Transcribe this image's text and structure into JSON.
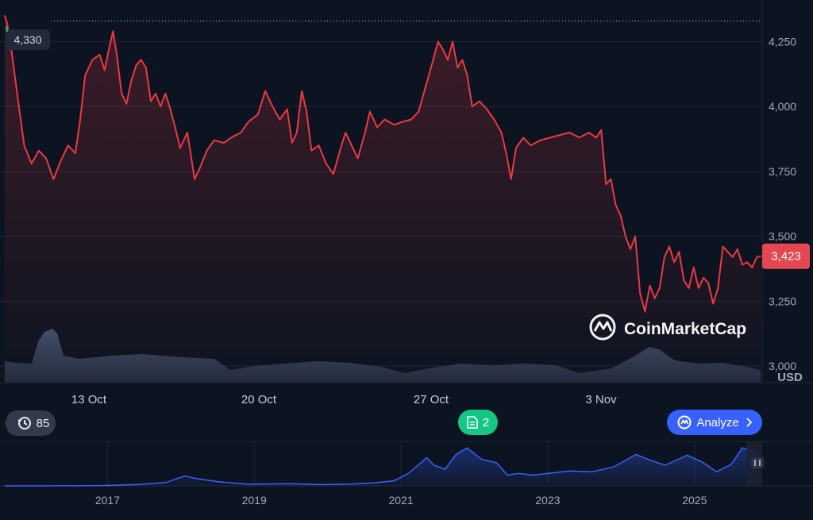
{
  "chart_data": [
    {
      "type": "line",
      "title": "",
      "ylabel": "USD",
      "xlabel": "",
      "ylim": [
        2850,
        4380
      ],
      "yticks": [
        "4,250",
        "4,000",
        "3,750",
        "3,500",
        "3,250",
        "3,000"
      ],
      "ytick_values": [
        4250,
        4000,
        3750,
        3500,
        3250,
        3000
      ],
      "xticks": [
        "13 Oct",
        "20 Oct",
        "27 Oct",
        "3 Nov"
      ],
      "high_label": "4,330",
      "high_value": 4330,
      "current_label": "3,423",
      "current_value": 3423,
      "watermark": "CoinMarketCap",
      "grid": true,
      "series": [
        {
          "color": "#ea3943",
          "points": [
            [
              0,
              4350
            ],
            [
              0.1,
              4320
            ],
            [
              0.3,
              4200
            ],
            [
              0.55,
              4020
            ],
            [
              0.8,
              3850
            ],
            [
              1.1,
              3780
            ],
            [
              1.4,
              3830
            ],
            [
              1.7,
              3800
            ],
            [
              2.0,
              3720
            ],
            [
              2.3,
              3790
            ],
            [
              2.6,
              3850
            ],
            [
              2.9,
              3820
            ],
            [
              3.1,
              3950
            ],
            [
              3.3,
              4120
            ],
            [
              3.6,
              4180
            ],
            [
              3.9,
              4200
            ],
            [
              4.1,
              4140
            ],
            [
              4.3,
              4230
            ],
            [
              4.45,
              4290
            ],
            [
              4.6,
              4200
            ],
            [
              4.8,
              4050
            ],
            [
              5.0,
              4010
            ],
            [
              5.2,
              4100
            ],
            [
              5.4,
              4160
            ],
            [
              5.6,
              4180
            ],
            [
              5.8,
              4150
            ],
            [
              6.0,
              4020
            ],
            [
              6.2,
              4050
            ],
            [
              6.4,
              4000
            ],
            [
              6.6,
              4050
            ],
            [
              6.8,
              3990
            ],
            [
              7.0,
              3920
            ],
            [
              7.2,
              3840
            ],
            [
              7.5,
              3900
            ],
            [
              7.8,
              3720
            ],
            [
              8.0,
              3760
            ],
            [
              8.3,
              3830
            ],
            [
              8.6,
              3870
            ],
            [
              9.0,
              3860
            ],
            [
              9.3,
              3880
            ],
            [
              9.7,
              3900
            ],
            [
              10.0,
              3940
            ],
            [
              10.4,
              3970
            ],
            [
              10.7,
              4060
            ],
            [
              11.0,
              4000
            ],
            [
              11.3,
              3950
            ],
            [
              11.6,
              3990
            ],
            [
              11.8,
              3860
            ],
            [
              12.0,
              3900
            ],
            [
              12.2,
              4060
            ],
            [
              12.4,
              3980
            ],
            [
              12.6,
              3830
            ],
            [
              12.9,
              3850
            ],
            [
              13.2,
              3780
            ],
            [
              13.5,
              3740
            ],
            [
              13.8,
              3840
            ],
            [
              14.0,
              3900
            ],
            [
              14.2,
              3860
            ],
            [
              14.5,
              3800
            ],
            [
              14.8,
              3900
            ],
            [
              15.0,
              3980
            ],
            [
              15.3,
              3920
            ],
            [
              15.6,
              3950
            ],
            [
              16.0,
              3930
            ],
            [
              16.3,
              3940
            ],
            [
              16.7,
              3950
            ],
            [
              17.0,
              3980
            ],
            [
              17.3,
              4080
            ],
            [
              17.6,
              4180
            ],
            [
              17.8,
              4250
            ],
            [
              18.0,
              4220
            ],
            [
              18.2,
              4180
            ],
            [
              18.4,
              4250
            ],
            [
              18.6,
              4150
            ],
            [
              18.8,
              4180
            ],
            [
              19.0,
              4120
            ],
            [
              19.2,
              4000
            ],
            [
              19.5,
              4020
            ],
            [
              19.8,
              3990
            ],
            [
              20.1,
              3950
            ],
            [
              20.4,
              3900
            ],
            [
              20.6,
              3820
            ],
            [
              20.8,
              3720
            ],
            [
              21.0,
              3840
            ],
            [
              21.3,
              3880
            ],
            [
              21.6,
              3850
            ],
            [
              22.0,
              3870
            ],
            [
              22.4,
              3880
            ],
            [
              22.8,
              3890
            ],
            [
              23.2,
              3900
            ],
            [
              23.6,
              3880
            ],
            [
              24.0,
              3900
            ],
            [
              24.3,
              3880
            ],
            [
              24.5,
              3910
            ],
            [
              24.7,
              3700
            ],
            [
              24.9,
              3720
            ],
            [
              25.1,
              3620
            ],
            [
              25.3,
              3580
            ],
            [
              25.5,
              3500
            ],
            [
              25.7,
              3450
            ],
            [
              25.9,
              3500
            ],
            [
              26.1,
              3280
            ],
            [
              26.3,
              3210
            ],
            [
              26.5,
              3310
            ],
            [
              26.7,
              3260
            ],
            [
              26.9,
              3300
            ],
            [
              27.1,
              3420
            ],
            [
              27.3,
              3460
            ],
            [
              27.5,
              3400
            ],
            [
              27.7,
              3440
            ],
            [
              27.9,
              3330
            ],
            [
              28.1,
              3300
            ],
            [
              28.3,
              3380
            ],
            [
              28.5,
              3300
            ],
            [
              28.7,
              3340
            ],
            [
              28.9,
              3320
            ],
            [
              29.1,
              3240
            ],
            [
              29.3,
              3300
            ],
            [
              29.5,
              3460
            ],
            [
              29.7,
              3440
            ],
            [
              29.9,
              3420
            ],
            [
              30.1,
              3450
            ],
            [
              30.3,
              3390
            ],
            [
              30.5,
              3400
            ],
            [
              30.7,
              3380
            ],
            [
              30.9,
              3420
            ],
            [
              31.05,
              3423
            ]
          ]
        }
      ]
    },
    {
      "type": "area",
      "title": "",
      "xticks": [
        "2017",
        "2019",
        "2021",
        "2023",
        "2025"
      ],
      "xtick_values": [
        2017,
        2019,
        2021,
        2023,
        2025
      ],
      "xlim": [
        2015.6,
        2025.9
      ],
      "ylim": [
        0,
        5000
      ],
      "series": [
        {
          "color": "#3861fb",
          "points": [
            [
              2015.6,
              1
            ],
            [
              2016.5,
              10
            ],
            [
              2017.0,
              50
            ],
            [
              2017.4,
              150
            ],
            [
              2017.8,
              400
            ],
            [
              2018.05,
              1200
            ],
            [
              2018.2,
              900
            ],
            [
              2018.5,
              500
            ],
            [
              2018.9,
              200
            ],
            [
              2019.5,
              250
            ],
            [
              2019.9,
              150
            ],
            [
              2020.3,
              200
            ],
            [
              2020.6,
              350
            ],
            [
              2020.9,
              600
            ],
            [
              2021.1,
              1500
            ],
            [
              2021.35,
              3400
            ],
            [
              2021.45,
              2500
            ],
            [
              2021.6,
              2000
            ],
            [
              2021.75,
              3800
            ],
            [
              2021.9,
              4600
            ],
            [
              2022.1,
              3200
            ],
            [
              2022.3,
              2800
            ],
            [
              2022.45,
              1300
            ],
            [
              2022.6,
              1500
            ],
            [
              2022.8,
              1300
            ],
            [
              2023.0,
              1500
            ],
            [
              2023.3,
              1800
            ],
            [
              2023.6,
              1700
            ],
            [
              2023.9,
              2300
            ],
            [
              2024.2,
              3800
            ],
            [
              2024.4,
              3100
            ],
            [
              2024.6,
              2500
            ],
            [
              2024.9,
              3700
            ],
            [
              2025.1,
              2900
            ],
            [
              2025.3,
              1700
            ],
            [
              2025.5,
              2600
            ],
            [
              2025.65,
              4600
            ],
            [
              2025.8,
              4300
            ],
            [
              2025.85,
              3900
            ]
          ]
        }
      ]
    }
  ],
  "badges": {
    "history_count": "85",
    "notes_count": "2",
    "analyze_label": "Analyze",
    "currency_label": "USD"
  },
  "colors": {
    "background": "#0d1421",
    "price_line": "#ea3943",
    "price_label_bg": "#e4474f",
    "volume_fill": "#3a4256",
    "overview_line": "#3861fb",
    "analyze_bg": "#3861fb",
    "notes_bg": "#16c784"
  },
  "icons": {
    "history": "history-clock-icon",
    "notes": "document-icon",
    "analyze": "cmc-logo-icon",
    "analyze_arrow": "chevron-right-icon",
    "handle": "range-handle-icon",
    "watermark": "cmc-logo-icon"
  }
}
